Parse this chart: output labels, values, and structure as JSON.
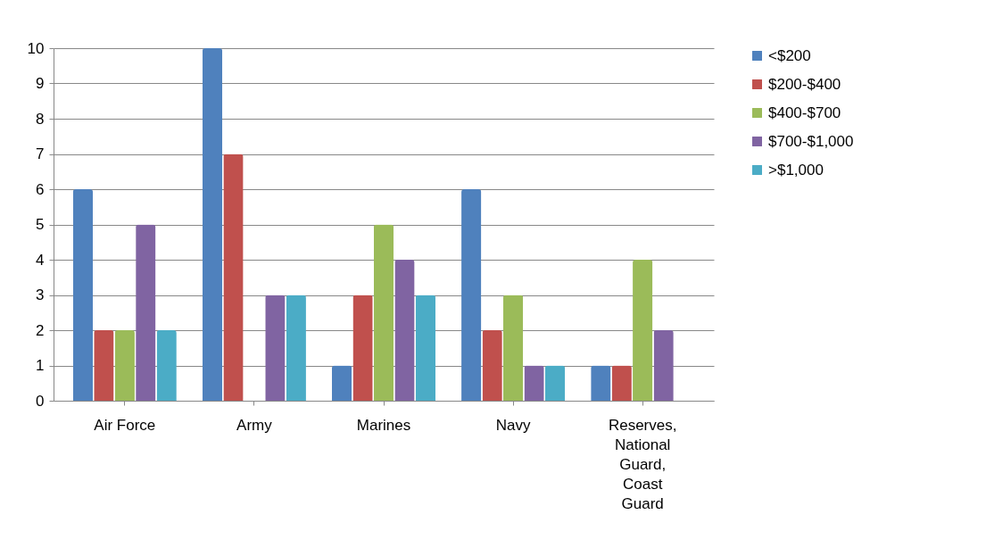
{
  "chart_data": {
    "type": "bar",
    "categories": [
      "Air Force",
      "Army",
      "Marines",
      "Navy",
      "Reserves, National Guard, Coast Guard"
    ],
    "series": [
      {
        "name": "<$200",
        "color": "#4f81bd",
        "values": [
          6,
          10,
          1,
          6,
          1
        ]
      },
      {
        "name": "$200-$400",
        "color": "#c0504d",
        "values": [
          2,
          7,
          3,
          2,
          1
        ]
      },
      {
        "name": "$400-$700",
        "color": "#9bbb59",
        "values": [
          2,
          0,
          5,
          3,
          4
        ]
      },
      {
        "name": "$700-$1,000",
        "color": "#8064a2",
        "values": [
          5,
          3,
          4,
          1,
          2
        ]
      },
      {
        "name": ">$1,000",
        "color": "#4bacc6",
        "values": [
          2,
          3,
          3,
          1,
          0
        ]
      }
    ],
    "ylim": [
      0,
      10
    ],
    "yticks": [
      0,
      1,
      2,
      3,
      4,
      5,
      6,
      7,
      8,
      9,
      10
    ],
    "grid": "y",
    "legend": "right"
  }
}
